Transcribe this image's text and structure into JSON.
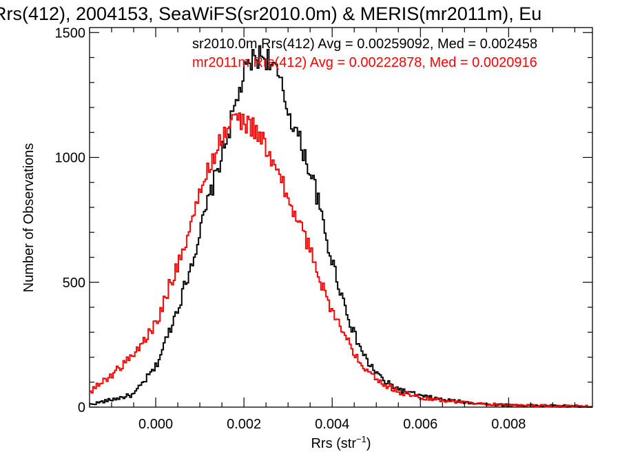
{
  "chart_data": {
    "type": "histogram-step",
    "title": "Rrs(412), 2004153, SeaWiFS(sr2010.0m) & MERIS(mr2011m), Eu",
    "xlabel_main": "Rrs (str",
    "xlabel_sup": "−1",
    "xlabel_close": ")",
    "ylabel": "Number of Observations",
    "xlim": [
      -0.0015,
      0.0099
    ],
    "ylim": [
      0,
      1520
    ],
    "xticks": [
      0.0,
      0.002,
      0.004,
      0.006,
      0.008
    ],
    "xtick_labels": [
      "0.000",
      "0.002",
      "0.004",
      "0.006",
      "0.008"
    ],
    "yticks": [
      0,
      500,
      1000,
      1500
    ],
    "ytick_labels": [
      "0",
      "500",
      "1000",
      "1500"
    ],
    "grid": false,
    "series": [
      {
        "name": "sr2010.0m",
        "color": "#000000",
        "annotation": "sr2010.0m Rrs(412) Avg = 0.00259092, Med = 0.002458",
        "x": [
          -0.0015,
          -0.001,
          -0.0005,
          0.0,
          0.0003,
          0.0006,
          0.0009,
          0.0012,
          0.0015,
          0.0018,
          0.002,
          0.0022,
          0.0024,
          0.0026,
          0.0028,
          0.003,
          0.0033,
          0.0036,
          0.0039,
          0.0042,
          0.0045,
          0.0048,
          0.0052,
          0.0056,
          0.006,
          0.0065,
          0.007,
          0.0075,
          0.008,
          0.0085,
          0.009,
          0.0099
        ],
        "y": [
          10,
          30,
          50,
          160,
          300,
          450,
          630,
          830,
          1010,
          1200,
          1330,
          1390,
          1410,
          1390,
          1310,
          1190,
          1050,
          890,
          650,
          460,
          290,
          180,
          100,
          65,
          45,
          30,
          20,
          12,
          8,
          6,
          5,
          2
        ]
      },
      {
        "name": "mr2011m",
        "color": "#ff0000",
        "annotation": "mr2011m Rrs(412) Avg = 0.00222878, Med = 0.0020916",
        "x": [
          -0.0015,
          -0.001,
          -0.0005,
          0.0,
          0.0003,
          0.0006,
          0.0009,
          0.0012,
          0.0015,
          0.0018,
          0.002,
          0.0022,
          0.0024,
          0.0026,
          0.0028,
          0.003,
          0.0033,
          0.0036,
          0.0039,
          0.0042,
          0.0045,
          0.0048,
          0.0052,
          0.0056,
          0.006,
          0.0065,
          0.007,
          0.0075,
          0.008,
          0.0085,
          0.009,
          0.0099
        ],
        "y": [
          60,
          130,
          210,
          330,
          480,
          620,
          790,
          960,
          1080,
          1160,
          1140,
          1120,
          1080,
          990,
          930,
          830,
          720,
          580,
          430,
          310,
          220,
          150,
          90,
          55,
          40,
          28,
          18,
          12,
          8,
          6,
          4,
          2
        ]
      }
    ]
  }
}
